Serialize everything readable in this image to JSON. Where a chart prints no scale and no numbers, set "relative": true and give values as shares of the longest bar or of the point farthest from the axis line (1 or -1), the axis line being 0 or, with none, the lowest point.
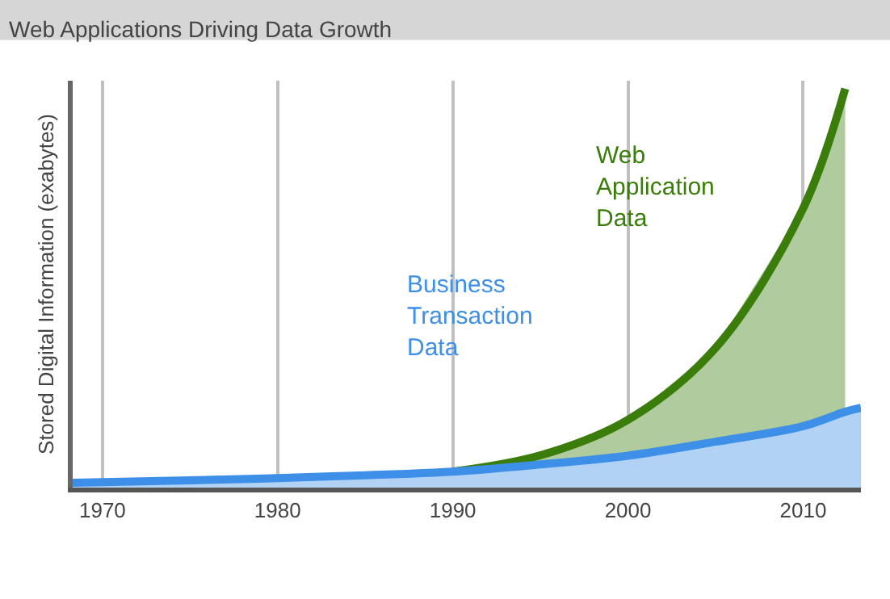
{
  "chart_data": {
    "type": "area",
    "title": "Web Applications Driving Data Growth",
    "ylabel": "Stored Digital Information (exabytes)",
    "relative": true,
    "stacked": true,
    "x": [
      1968.3,
      1975,
      1980,
      1985,
      1990,
      1995,
      2000,
      2005,
      2010,
      2012.4,
      2013.3
    ],
    "series": [
      {
        "name": "Business Transaction Data",
        "color": "#3d8fe8",
        "values": [
          0.012,
          0.018,
          0.024,
          0.031,
          0.04,
          0.058,
          0.08,
          0.115,
          0.154,
          0.19,
          0.2
        ]
      },
      {
        "name": "Web Application Data",
        "color": "#3a7d0a",
        "values": [
          null,
          null,
          null,
          null,
          0,
          0.023,
          0.09,
          0.235,
          0.546,
          0.81,
          null
        ]
      }
    ],
    "xlim": [
      1968.3,
      2013.3
    ],
    "xticks": [
      1970,
      1980,
      1990,
      2000,
      2010
    ],
    "grid": "x",
    "tick_labels": "x",
    "legend": false
  }
}
